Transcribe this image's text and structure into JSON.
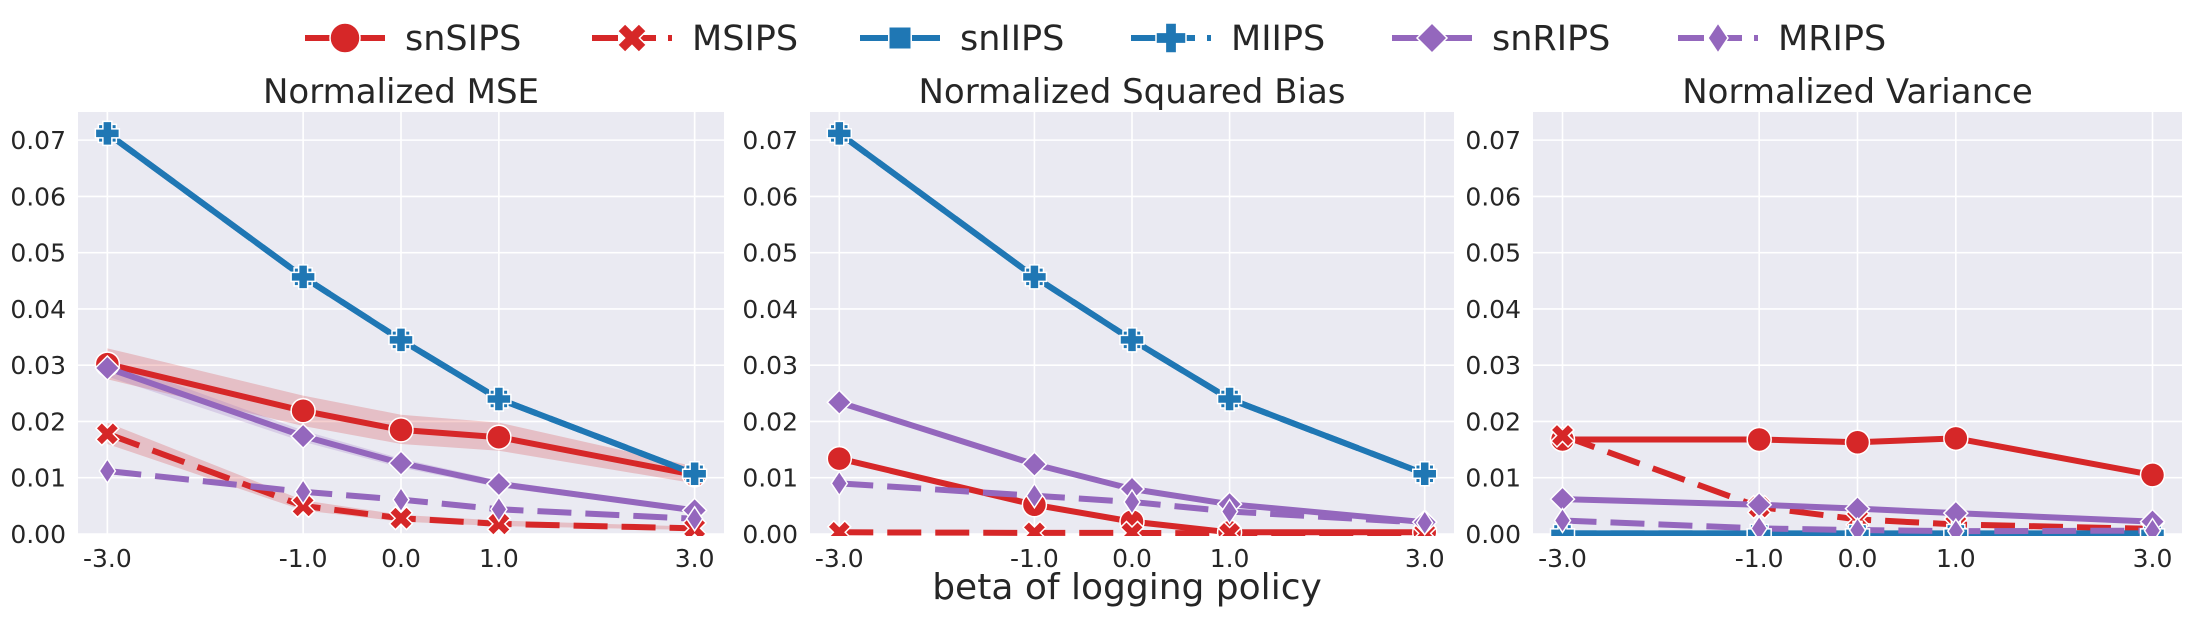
{
  "chart_data": {
    "type": "line",
    "xlabel": "beta of logging policy",
    "x": [
      -3.0,
      -1.0,
      0.0,
      1.0,
      3.0
    ],
    "x_tick_labels": [
      "-3.0",
      "-1.0",
      "0.0",
      "1.0",
      "3.0"
    ],
    "ylim": [
      0,
      0.075
    ],
    "y_ticks": [
      0.0,
      0.01,
      0.02,
      0.03,
      0.04,
      0.05,
      0.06,
      0.07
    ],
    "y_tick_labels": [
      "0.00",
      "0.01",
      "0.02",
      "0.03",
      "0.04",
      "0.05",
      "0.06",
      "0.07"
    ],
    "grid": true,
    "legend_placement": "top-center",
    "legend": [
      {
        "name": "snSIPS",
        "color": "#d62728",
        "dash": "solid",
        "marker": "circle"
      },
      {
        "name": "MSIPS",
        "color": "#d62728",
        "dash": "dashed",
        "marker": "x"
      },
      {
        "name": "snIIPS",
        "color": "#1f77b4",
        "dash": "solid",
        "marker": "square"
      },
      {
        "name": "MIIPS",
        "color": "#1f77b4",
        "dash": "dashed",
        "marker": "plus"
      },
      {
        "name": "snRIPS",
        "color": "#9467bd",
        "dash": "solid",
        "marker": "diamond"
      },
      {
        "name": "MRIPS",
        "color": "#9467bd",
        "dash": "dashed",
        "marker": "thin-diamond"
      }
    ],
    "panels": [
      {
        "title": "Normalized MSE",
        "series": [
          {
            "name": "snSIPS",
            "values": [
              0.0302,
              0.0219,
              0.0185,
              0.0172,
              0.0105
            ],
            "band": [
              [
                0.0275,
                0.033
              ],
              [
                0.0192,
                0.0246
              ],
              [
                0.016,
                0.0212
              ],
              [
                0.0148,
                0.0198
              ],
              [
                0.009,
                0.012
              ]
            ]
          },
          {
            "name": "MSIPS",
            "values": [
              0.0178,
              0.005,
              0.0028,
              0.0018,
              0.001
            ],
            "band": [
              [
                0.016,
                0.0198
              ],
              [
                0.0042,
                0.006
              ],
              [
                0.0022,
                0.0034
              ],
              [
                0.0014,
                0.0024
              ],
              [
                0.0007,
                0.0013
              ]
            ]
          },
          {
            "name": "snIIPS",
            "values": [
              0.0712,
              0.0457,
              0.0345,
              0.024,
              0.0107
            ]
          },
          {
            "name": "MIIPS",
            "values": [
              0.0712,
              0.0457,
              0.0345,
              0.024,
              0.0107
            ]
          },
          {
            "name": "snRIPS",
            "values": [
              0.0295,
              0.0174,
              0.0126,
              0.0089,
              0.0042
            ],
            "band": [
              [
                0.028,
                0.031
              ],
              [
                0.0164,
                0.0184
              ],
              [
                0.0118,
                0.0134
              ],
              [
                0.0083,
                0.0095
              ],
              [
                0.0038,
                0.0046
              ]
            ]
          },
          {
            "name": "MRIPS",
            "values": [
              0.0112,
              0.0075,
              0.0061,
              0.0044,
              0.0027
            ]
          }
        ]
      },
      {
        "title": "Normalized Squared Bias",
        "series": [
          {
            "name": "snSIPS",
            "values": [
              0.0134,
              0.0052,
              0.0022,
              0.0003,
              0.0003
            ]
          },
          {
            "name": "MSIPS",
            "values": [
              0.0003,
              0.0002,
              0.0002,
              0.0001,
              0.0001
            ]
          },
          {
            "name": "snIIPS",
            "values": [
              0.0712,
              0.0457,
              0.0345,
              0.024,
              0.0107
            ]
          },
          {
            "name": "MIIPS",
            "values": [
              0.0712,
              0.0457,
              0.0345,
              0.024,
              0.0107
            ]
          },
          {
            "name": "snRIPS",
            "values": [
              0.0234,
              0.0124,
              0.008,
              0.0053,
              0.0021
            ]
          },
          {
            "name": "MRIPS",
            "values": [
              0.009,
              0.0068,
              0.0057,
              0.004,
              0.002
            ]
          }
        ]
      },
      {
        "title": "Normalized Variance",
        "series": [
          {
            "name": "snSIPS",
            "values": [
              0.0168,
              0.0168,
              0.0163,
              0.017,
              0.0105
            ]
          },
          {
            "name": "MSIPS",
            "values": [
              0.0175,
              0.0048,
              0.0026,
              0.0017,
              0.0009
            ]
          },
          {
            "name": "snIIPS",
            "values": [
              0.0001,
              0.0001,
              0.0001,
              0.0001,
              0.0001
            ]
          },
          {
            "name": "MIIPS",
            "values": [
              0.0001,
              0.0001,
              0.0001,
              0.0001,
              0.0001
            ]
          },
          {
            "name": "snRIPS",
            "values": [
              0.0062,
              0.0052,
              0.0045,
              0.0037,
              0.0022
            ]
          },
          {
            "name": "MRIPS",
            "values": [
              0.0024,
              0.001,
              0.0007,
              0.0005,
              0.0006
            ]
          }
        ]
      }
    ]
  }
}
